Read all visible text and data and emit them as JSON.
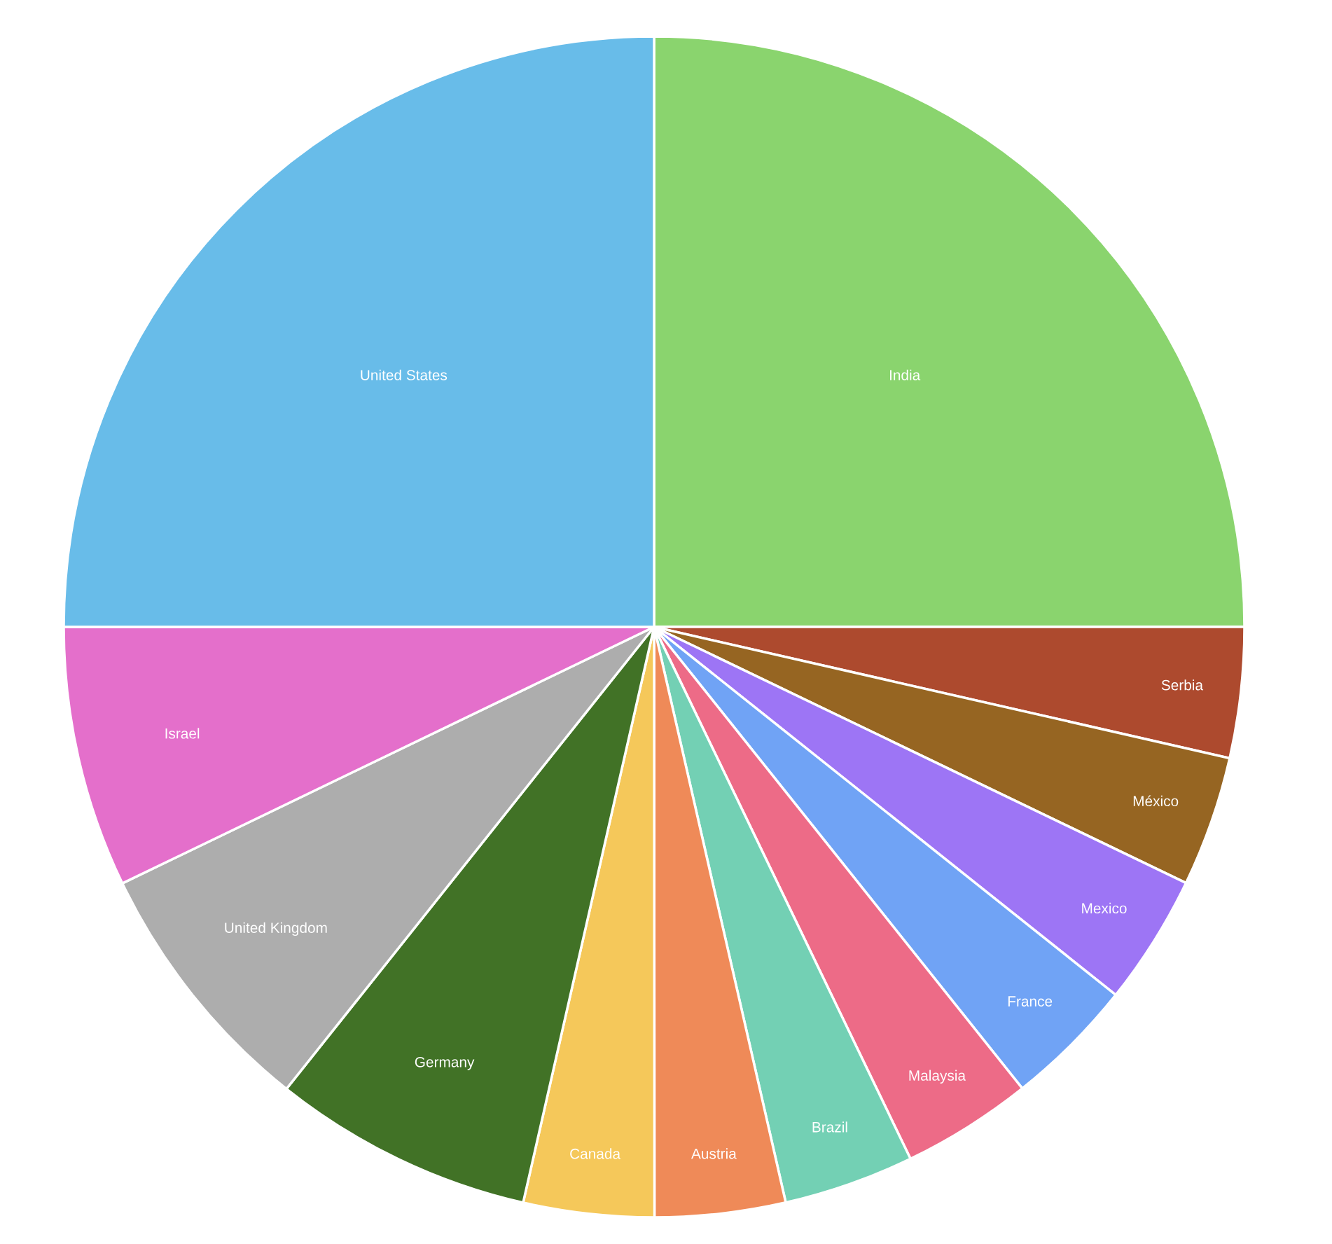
{
  "chart_data": {
    "type": "pie",
    "categories": [
      "India",
      "Serbia",
      "México",
      "Mexico",
      "France",
      "Malaysia",
      "Brazil",
      "Austria",
      "Canada",
      "Germany",
      "United Kingdom",
      "Israel",
      "United States"
    ],
    "values": [
      25,
      3.57,
      3.57,
      3.57,
      3.57,
      3.57,
      3.57,
      3.57,
      3.57,
      7.14,
      7.15,
      7.15,
      25
    ],
    "colors": [
      "#8ad46e",
      "#ad4a2e",
      "#966522",
      "#9d75f5",
      "#70a3f5",
      "#ed6b87",
      "#73d0b4",
      "#ef8a58",
      "#f5c85a",
      "#417226",
      "#adadad",
      "#e46fcb",
      "#68bce9"
    ],
    "legend": false
  }
}
